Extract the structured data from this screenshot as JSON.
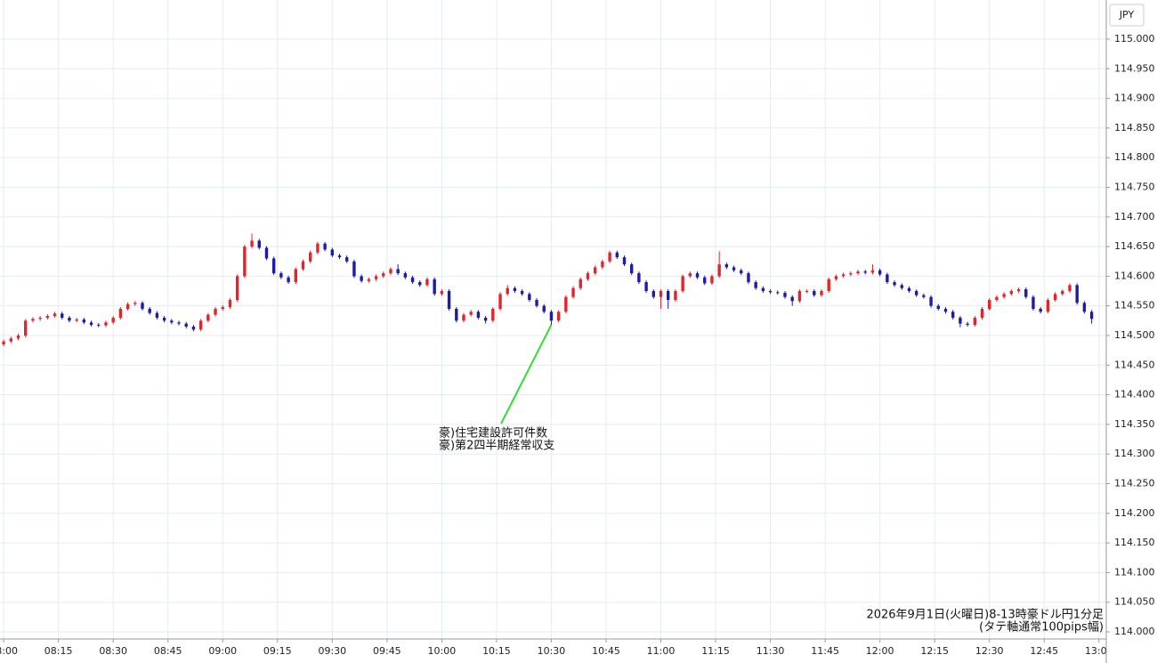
{
  "chart_data": {
    "type": "candlestick",
    "y_axis_label": "JPY",
    "annotations": [
      {
        "lines": [
          "豪)住宅建設許可件数",
          "豪)第2四半期経常収支"
        ],
        "x": "10:30"
      }
    ],
    "note": [
      "2026年9月1日(火曜日)8-13時豪ドル円1分足",
      "(タテ軸通常100pips幅)"
    ],
    "up_color": "#e3242b",
    "down_color": "#1c1ca8",
    "grid": true,
    "xlim": [
      "07:59",
      "13:02"
    ],
    "xticks": [
      "08:00",
      "08:15",
      "08:30",
      "08:45",
      "09:00",
      "09:15",
      "09:30",
      "09:45",
      "10:00",
      "10:15",
      "10:30",
      "10:45",
      "11:00",
      "11:15",
      "11:30",
      "11:45",
      "12:00",
      "12:15",
      "12:30",
      "12:45",
      "13:00"
    ],
    "ylim": [
      113.988,
      115.066
    ],
    "yticks": [
      {
        "value": 114,
        "label": "114.000"
      },
      {
        "value": 114.05,
        "label": "114.050"
      },
      {
        "value": 114.1,
        "label": "114.100"
      },
      {
        "value": 114.15,
        "label": "114.150"
      },
      {
        "value": 114.2,
        "label": "114.200"
      },
      {
        "value": 114.25,
        "label": "114.250"
      },
      {
        "value": 114.3,
        "label": "114.300"
      },
      {
        "value": 114.35,
        "label": "114.350"
      },
      {
        "value": 114.4,
        "label": "114.400"
      },
      {
        "value": 114.45,
        "label": "114.450"
      },
      {
        "value": 114.5,
        "label": "114.500"
      },
      {
        "value": 114.55,
        "label": "114.550"
      },
      {
        "value": 114.6,
        "label": "114.600"
      },
      {
        "value": 114.65,
        "label": "114.650"
      },
      {
        "value": 114.7,
        "label": "114.700"
      },
      {
        "value": 114.75,
        "label": "114.750"
      },
      {
        "value": 114.8,
        "label": "114.800"
      },
      {
        "value": 114.85,
        "label": "114.850"
      },
      {
        "value": 114.9,
        "label": "114.900"
      },
      {
        "value": 114.95,
        "label": "114.950"
      },
      {
        "value": 115,
        "label": "115.000"
      }
    ],
    "x": [
      "08:00",
      "08:02",
      "08:04",
      "08:06",
      "08:08",
      "08:10",
      "08:12",
      "08:14",
      "08:16",
      "08:18",
      "08:20",
      "08:22",
      "08:24",
      "08:26",
      "08:28",
      "08:30",
      "08:32",
      "08:34",
      "08:36",
      "08:38",
      "08:40",
      "08:42",
      "08:44",
      "08:46",
      "08:48",
      "08:50",
      "08:52",
      "08:54",
      "08:56",
      "08:58",
      "09:00",
      "09:02",
      "09:04",
      "09:06",
      "09:08",
      "09:10",
      "09:12",
      "09:14",
      "09:16",
      "09:18",
      "09:20",
      "09:22",
      "09:24",
      "09:26",
      "09:28",
      "09:30",
      "09:32",
      "09:34",
      "09:36",
      "09:38",
      "09:40",
      "09:42",
      "09:44",
      "09:46",
      "09:48",
      "09:50",
      "09:52",
      "09:54",
      "09:56",
      "09:58",
      "10:00",
      "10:02",
      "10:04",
      "10:06",
      "10:08",
      "10:10",
      "10:12",
      "10:14",
      "10:16",
      "10:18",
      "10:20",
      "10:22",
      "10:24",
      "10:26",
      "10:28",
      "10:30",
      "10:32",
      "10:34",
      "10:36",
      "10:38",
      "10:40",
      "10:42",
      "10:44",
      "10:46",
      "10:48",
      "10:50",
      "10:52",
      "10:54",
      "10:56",
      "10:58",
      "11:00",
      "11:02",
      "11:04",
      "11:06",
      "11:08",
      "11:10",
      "11:12",
      "11:14",
      "11:16",
      "11:18",
      "11:20",
      "11:22",
      "11:24",
      "11:26",
      "11:28",
      "11:30",
      "11:32",
      "11:34",
      "11:36",
      "11:38",
      "11:40",
      "11:42",
      "11:44",
      "11:46",
      "11:48",
      "11:50",
      "11:52",
      "11:54",
      "11:56",
      "11:58",
      "12:00",
      "12:02",
      "12:04",
      "12:06",
      "12:08",
      "12:10",
      "12:12",
      "12:14",
      "12:16",
      "12:18",
      "12:20",
      "12:22",
      "12:24",
      "12:26",
      "12:28",
      "12:30",
      "12:32",
      "12:34",
      "12:36",
      "12:38",
      "12:40",
      "12:42",
      "12:44",
      "12:46",
      "12:48",
      "12:50",
      "12:52",
      "12:54",
      "12:56",
      "12:58"
    ],
    "open": [
      114.485,
      114.49,
      114.495,
      114.5,
      114.525,
      114.528,
      114.53,
      114.533,
      114.537,
      114.53,
      114.525,
      114.527,
      114.522,
      114.518,
      114.517,
      114.522,
      114.53,
      114.545,
      114.553,
      114.555,
      114.545,
      114.538,
      114.53,
      114.525,
      114.522,
      114.52,
      114.515,
      114.51,
      114.525,
      114.535,
      114.545,
      114.548,
      114.56,
      114.6,
      114.65,
      114.66,
      114.648,
      114.63,
      114.605,
      114.598,
      114.59,
      114.612,
      114.625,
      114.64,
      114.655,
      114.645,
      114.635,
      114.632,
      114.625,
      114.6,
      114.592,
      114.595,
      114.6,
      114.605,
      114.612,
      114.605,
      114.598,
      114.59,
      114.585,
      114.595,
      114.57,
      114.575,
      114.545,
      114.525,
      114.535,
      114.54,
      114.53,
      114.525,
      114.545,
      114.57,
      114.58,
      114.575,
      114.57,
      114.56,
      114.55,
      114.54,
      114.525,
      114.54,
      114.565,
      114.58,
      114.595,
      114.605,
      114.615,
      114.625,
      114.64,
      114.632,
      114.62,
      114.605,
      114.59,
      114.575,
      114.565,
      114.575,
      114.56,
      114.575,
      114.6,
      114.605,
      114.598,
      114.588,
      114.6,
      114.62,
      114.615,
      114.61,
      114.605,
      114.59,
      114.58,
      114.575,
      114.573,
      114.572,
      114.565,
      114.558,
      114.575,
      114.575,
      114.568,
      114.575,
      114.595,
      114.6,
      114.603,
      114.605,
      114.608,
      114.606,
      114.61,
      114.603,
      114.59,
      114.585,
      114.58,
      114.575,
      114.568,
      114.565,
      114.55,
      114.545,
      114.54,
      114.53,
      114.52,
      114.518,
      114.53,
      114.545,
      114.56,
      114.565,
      114.57,
      114.575,
      114.578,
      114.565,
      114.545,
      114.54,
      114.56,
      114.57,
      114.575,
      114.585,
      114.555,
      114.54
    ],
    "high": [
      114.493,
      114.498,
      114.503,
      114.528,
      114.531,
      114.533,
      114.536,
      114.54,
      114.54,
      114.533,
      114.53,
      114.53,
      114.525,
      114.521,
      114.525,
      114.533,
      114.548,
      114.556,
      114.558,
      114.558,
      114.548,
      114.541,
      114.533,
      114.528,
      114.525,
      114.523,
      114.518,
      114.528,
      114.538,
      114.548,
      114.551,
      114.563,
      114.603,
      114.653,
      114.672,
      114.663,
      114.651,
      114.633,
      114.608,
      114.601,
      114.615,
      114.628,
      114.643,
      114.658,
      114.658,
      114.648,
      114.638,
      114.635,
      114.628,
      114.603,
      114.598,
      114.603,
      114.608,
      114.615,
      114.62,
      114.608,
      114.601,
      114.593,
      114.598,
      114.598,
      114.578,
      114.578,
      114.548,
      114.538,
      114.543,
      114.543,
      114.533,
      114.548,
      114.573,
      114.585,
      114.583,
      114.578,
      114.573,
      114.563,
      114.553,
      114.543,
      114.543,
      114.568,
      114.583,
      114.598,
      114.608,
      114.618,
      114.628,
      114.643,
      114.643,
      114.635,
      114.623,
      114.608,
      114.593,
      114.578,
      114.578,
      114.578,
      114.578,
      114.603,
      114.608,
      114.608,
      114.601,
      114.603,
      114.642,
      114.623,
      114.618,
      114.613,
      114.608,
      114.593,
      114.583,
      114.578,
      114.576,
      114.575,
      114.568,
      114.578,
      114.578,
      114.578,
      114.578,
      114.598,
      114.603,
      114.606,
      114.608,
      114.611,
      114.611,
      114.62,
      114.613,
      114.606,
      114.593,
      114.588,
      114.583,
      114.578,
      114.571,
      114.568,
      114.553,
      114.548,
      114.543,
      114.533,
      114.523,
      114.533,
      114.548,
      114.563,
      114.568,
      114.573,
      114.578,
      114.581,
      114.581,
      114.568,
      114.548,
      114.563,
      114.573,
      114.578,
      114.588,
      114.588,
      114.558,
      114.543
    ],
    "low": [
      114.482,
      114.487,
      114.492,
      114.497,
      114.522,
      114.525,
      114.527,
      114.53,
      114.527,
      114.522,
      114.522,
      114.519,
      114.515,
      114.514,
      114.514,
      114.519,
      114.527,
      114.542,
      114.55,
      114.542,
      114.535,
      114.527,
      114.522,
      114.519,
      114.517,
      114.512,
      114.507,
      114.507,
      114.522,
      114.532,
      114.542,
      114.545,
      114.557,
      114.597,
      114.647,
      114.645,
      114.627,
      114.602,
      114.595,
      114.587,
      114.587,
      114.609,
      114.622,
      114.637,
      114.642,
      114.632,
      114.629,
      114.622,
      114.597,
      114.589,
      114.589,
      114.592,
      114.597,
      114.602,
      114.602,
      114.595,
      114.587,
      114.582,
      114.582,
      114.567,
      114.567,
      114.542,
      114.522,
      114.522,
      114.532,
      114.527,
      114.52,
      114.522,
      114.542,
      114.567,
      114.572,
      114.567,
      114.557,
      114.547,
      114.537,
      114.518,
      114.522,
      114.537,
      114.562,
      114.577,
      114.592,
      114.602,
      114.612,
      114.622,
      114.629,
      114.617,
      114.602,
      114.587,
      114.572,
      114.562,
      114.545,
      114.545,
      114.557,
      114.572,
      114.597,
      114.595,
      114.585,
      114.585,
      114.597,
      114.612,
      114.607,
      114.602,
      114.587,
      114.577,
      114.572,
      114.57,
      114.569,
      114.562,
      114.55,
      114.555,
      114.572,
      114.565,
      114.565,
      114.572,
      114.592,
      114.597,
      114.6,
      114.602,
      114.603,
      114.603,
      114.6,
      114.587,
      114.582,
      114.577,
      114.572,
      114.565,
      114.562,
      114.547,
      114.542,
      114.537,
      114.527,
      114.514,
      114.515,
      114.515,
      114.527,
      114.542,
      114.557,
      114.562,
      114.567,
      114.572,
      114.562,
      114.542,
      114.537,
      114.537,
      114.557,
      114.567,
      114.572,
      114.552,
      114.537,
      114.52
    ],
    "close": [
      114.49,
      114.495,
      114.5,
      114.525,
      114.528,
      114.53,
      114.533,
      114.537,
      114.53,
      114.525,
      114.527,
      114.522,
      114.518,
      114.517,
      114.522,
      114.53,
      114.545,
      114.553,
      114.555,
      114.545,
      114.538,
      114.53,
      114.525,
      114.522,
      114.52,
      114.515,
      114.51,
      114.525,
      114.535,
      114.545,
      114.548,
      114.56,
      114.6,
      114.65,
      114.66,
      114.648,
      114.63,
      114.605,
      114.598,
      114.59,
      114.612,
      114.625,
      114.64,
      114.655,
      114.645,
      114.635,
      114.632,
      114.625,
      114.6,
      114.592,
      114.595,
      114.6,
      114.605,
      114.612,
      114.605,
      114.598,
      114.59,
      114.585,
      114.595,
      114.57,
      114.575,
      114.545,
      114.525,
      114.535,
      114.54,
      114.53,
      114.525,
      114.545,
      114.57,
      114.58,
      114.575,
      114.57,
      114.56,
      114.55,
      114.54,
      114.525,
      114.54,
      114.565,
      114.58,
      114.595,
      114.605,
      114.615,
      114.625,
      114.64,
      114.632,
      114.62,
      114.605,
      114.59,
      114.575,
      114.565,
      114.575,
      114.56,
      114.575,
      114.6,
      114.605,
      114.598,
      114.588,
      114.6,
      114.62,
      114.615,
      114.61,
      114.605,
      114.59,
      114.58,
      114.575,
      114.573,
      114.572,
      114.565,
      114.558,
      114.575,
      114.575,
      114.568,
      114.575,
      114.595,
      114.6,
      114.603,
      114.605,
      114.608,
      114.606,
      114.61,
      114.603,
      114.59,
      114.585,
      114.58,
      114.575,
      114.568,
      114.565,
      114.55,
      114.545,
      114.54,
      114.53,
      114.52,
      114.518,
      114.53,
      114.545,
      114.56,
      114.565,
      114.57,
      114.575,
      114.578,
      114.565,
      114.545,
      114.54,
      114.56,
      114.57,
      114.575,
      114.585,
      114.555,
      114.54,
      114.528
    ]
  }
}
